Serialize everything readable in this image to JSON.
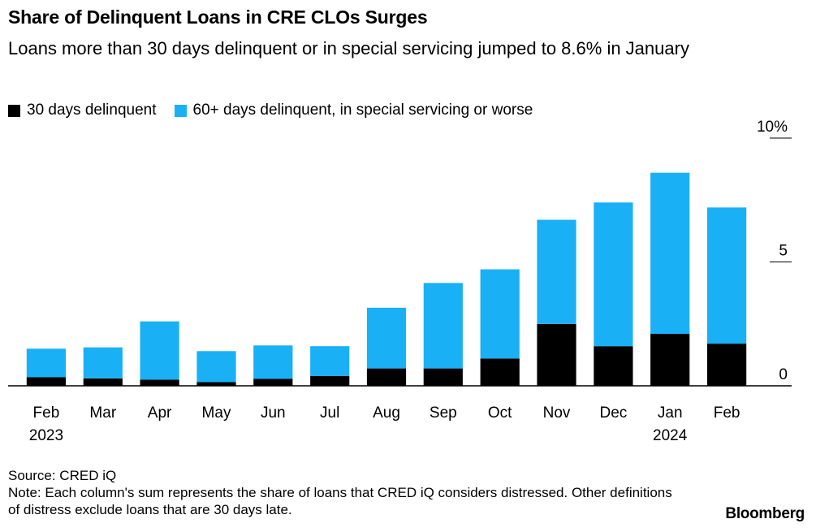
{
  "chart_data": {
    "type": "bar",
    "stacked": true,
    "title": "Share of Delinquent Loans in CRE CLOs Surges",
    "subtitle": "Loans more than 30 days delinquent or in special servicing jumped to 8.6% in January",
    "categories": [
      "Feb",
      "Mar",
      "Apr",
      "May",
      "Jun",
      "Jul",
      "Aug",
      "Sep",
      "Oct",
      "Nov",
      "Dec",
      "Jan",
      "Feb"
    ],
    "year_labels": [
      "2023",
      "",
      "",
      "",
      "",
      "",
      "",
      "",
      "",
      "",
      "",
      "2024",
      ""
    ],
    "series": [
      {
        "name": "30 days delinquent",
        "color": "#000000",
        "values": [
          0.35,
          0.3,
          0.25,
          0.15,
          0.28,
          0.4,
          0.7,
          0.7,
          1.1,
          2.5,
          1.6,
          2.1,
          1.7
        ]
      },
      {
        "name": "60+ days delinquent, in special servicing or worse",
        "color": "#1ab0f5",
        "values": [
          1.15,
          1.25,
          2.35,
          1.25,
          1.35,
          1.2,
          2.45,
          3.45,
          3.6,
          4.2,
          5.8,
          6.5,
          5.5
        ]
      }
    ],
    "ylim": [
      0,
      10
    ],
    "yticks": [
      {
        "value": 0,
        "label": "0"
      },
      {
        "value": 5,
        "label": "5"
      },
      {
        "value": 10,
        "label": "10%"
      }
    ],
    "y_axis_side": "right",
    "legend_position": "top-left"
  },
  "source": "Source: CRED iQ",
  "note": "Note: Each column's sum represents the share of loans that CRED iQ considers distressed. Other definitions of distress exclude loans that are 30 days late.",
  "brand": "Bloomberg"
}
